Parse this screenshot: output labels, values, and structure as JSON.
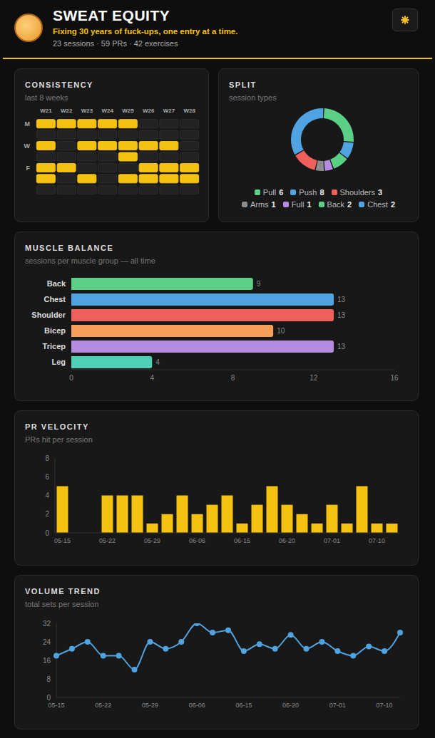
{
  "header": {
    "title": "SWEAT EQUITY",
    "subtitle": "Fixing 30 years of fuck-ups, one entry at a time.",
    "stats": "23 sessions · 59 PRs · 42 exercises"
  },
  "chart_data": [
    {
      "type": "heatmap",
      "title": "CONSISTENCY",
      "subtitle": "last 8 weeks",
      "x": [
        "W21",
        "W22",
        "W23",
        "W24",
        "W25",
        "W26",
        "W27",
        "W28"
      ],
      "y": [
        "M",
        null,
        "W",
        null,
        "F",
        null,
        null
      ],
      "cells": [
        [
          1,
          1,
          1,
          1,
          1,
          0,
          0,
          0
        ],
        [
          0,
          0,
          0,
          0,
          0,
          0,
          0,
          0
        ],
        [
          1,
          0,
          1,
          1,
          1,
          1,
          1,
          0
        ],
        [
          0,
          0,
          0,
          0,
          1,
          0,
          0,
          0
        ],
        [
          1,
          1,
          0,
          0,
          0,
          1,
          1,
          1
        ],
        [
          1,
          0,
          1,
          0,
          1,
          1,
          1,
          1
        ],
        [
          0,
          0,
          0,
          0,
          0,
          0,
          0,
          0
        ]
      ],
      "color": "#f5c211"
    },
    {
      "type": "donut",
      "title": "SPLIT",
      "subtitle": "session types",
      "categories": [
        "Pull",
        "Push",
        "Shoulders",
        "Arms",
        "Full",
        "Back",
        "Chest"
      ],
      "values": [
        6,
        8,
        3,
        1,
        1,
        2,
        2
      ],
      "colors": [
        "#5ccf86",
        "#4fa3e0",
        "#f0605a",
        "#8c8c8c",
        "#b58ce0",
        "#5ccf86",
        "#4fa3e0"
      ],
      "legend": "bottom"
    },
    {
      "type": "bar",
      "orientation": "horizontal",
      "title": "MUSCLE BALANCE",
      "subtitle": "sessions per muscle group — all time",
      "categories": [
        "Back",
        "Chest",
        "Shoulder",
        "Bicep",
        "Tricep",
        "Leg"
      ],
      "values": [
        9,
        13,
        13,
        10,
        13,
        4
      ],
      "colors": [
        "#5ccf86",
        "#4fa3e0",
        "#f0605a",
        "#f5a05a",
        "#b58ce0",
        "#4fcfb5"
      ],
      "xlim": [
        0,
        16
      ],
      "xticks": [
        0,
        4,
        8,
        12,
        16
      ],
      "data_labels": true,
      "grid": false
    },
    {
      "type": "bar",
      "title": "PR VELOCITY",
      "subtitle": "PRs hit per session",
      "categories": [
        "05-15",
        null,
        null,
        "05-22",
        null,
        null,
        "05-29",
        null,
        null,
        "06-06",
        null,
        null,
        "06-15",
        null,
        null,
        "06-20",
        null,
        null,
        "07-01",
        null,
        null,
        "07-10",
        null
      ],
      "values": [
        5,
        0,
        0,
        4,
        4,
        4,
        1,
        2,
        4,
        2,
        3,
        4,
        1,
        3,
        5,
        3,
        2,
        1,
        3,
        1,
        5,
        1,
        1
      ],
      "color": "#f5c211",
      "ylim": [
        0,
        8
      ],
      "yticks": [
        0,
        2,
        4,
        6,
        8
      ],
      "grid": false
    },
    {
      "type": "line",
      "title": "VOLUME TREND",
      "subtitle": "total sets per session",
      "categories": [
        "05-15",
        null,
        null,
        "05-22",
        null,
        null,
        "05-29",
        null,
        null,
        "06-06",
        null,
        null,
        "06-15",
        null,
        null,
        "06-20",
        null,
        null,
        "07-01",
        null,
        null,
        "07-10",
        null
      ],
      "values": [
        18,
        21,
        24,
        18,
        18,
        12,
        24,
        21,
        24,
        32,
        28,
        29,
        20,
        23,
        21,
        27,
        21,
        24,
        20,
        18,
        22,
        20,
        28
      ],
      "color": "#4fa3e0",
      "marker": "circle",
      "ylim": [
        0,
        32
      ],
      "yticks": [
        0,
        8,
        16,
        24,
        32
      ],
      "grid": false
    }
  ]
}
